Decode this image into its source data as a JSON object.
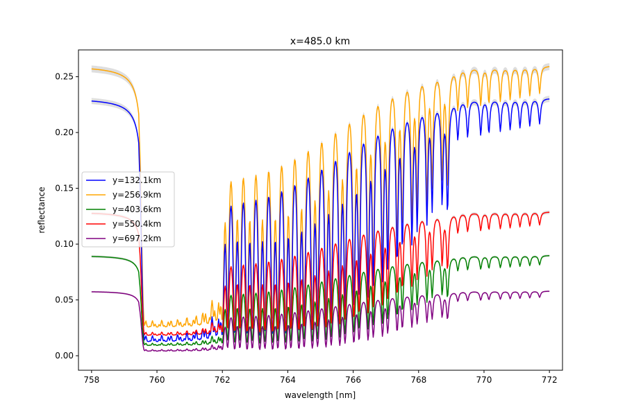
{
  "chart_data": {
    "type": "line",
    "title": "x=485.0 km",
    "xlabel": "wavelength [nm]",
    "ylabel": "reflectance",
    "xlim": [
      757.6,
      772.4
    ],
    "ylim": [
      -0.013,
      0.274
    ],
    "xticks": [
      758,
      760,
      762,
      764,
      766,
      768,
      770,
      772
    ],
    "xtick_labels": [
      "758",
      "760",
      "762",
      "764",
      "766",
      "768",
      "770",
      "772"
    ],
    "yticks": [
      0.0,
      0.05,
      0.1,
      0.15,
      0.2,
      0.25
    ],
    "ytick_labels": [
      "0.00",
      "0.05",
      "0.10",
      "0.15",
      "0.20",
      "0.25"
    ],
    "grid": false,
    "legend_position": "center-left",
    "x_range": [
      758,
      772
    ],
    "n_points": 700,
    "band_shading_color": "#c8c8c8",
    "series": [
      {
        "name": "y=132.1km",
        "color": "#0000ff",
        "continuum": 0.231,
        "floor": 0.012
      },
      {
        "name": "y=256.9km",
        "color": "#ffa500",
        "continuum": 0.26,
        "floor": 0.025
      },
      {
        "name": "y=403.6km",
        "color": "#008000",
        "continuum": 0.09,
        "floor": 0.009
      },
      {
        "name": "y=550.4km",
        "color": "#ff0000",
        "continuum": 0.129,
        "floor": 0.018
      },
      {
        "name": "y=697.2km",
        "color": "#800080",
        "continuum": 0.058,
        "floor": 0.004
      }
    ]
  }
}
